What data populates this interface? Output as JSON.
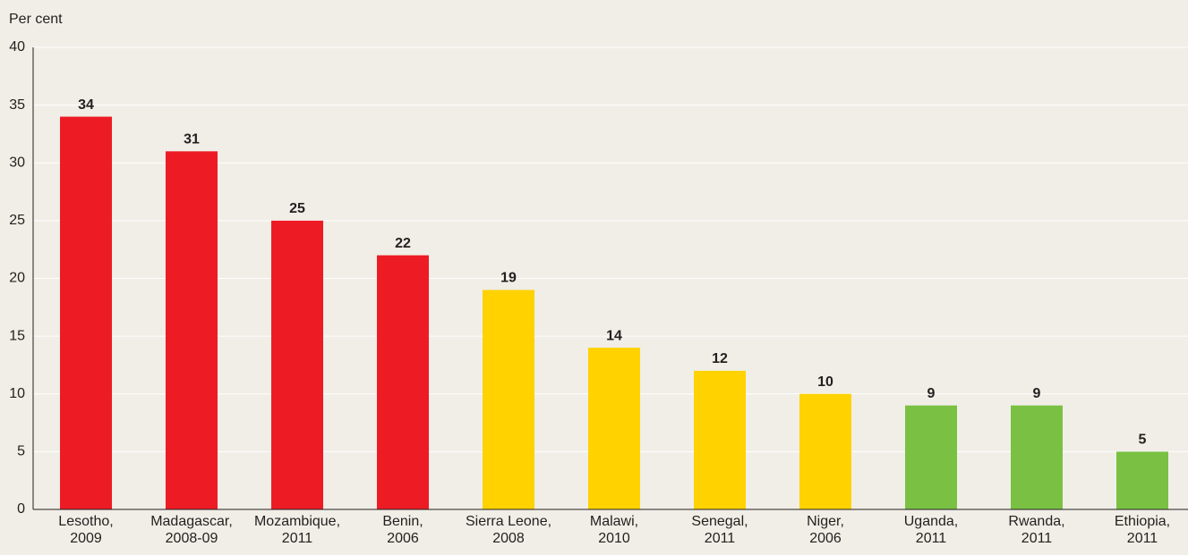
{
  "chart_data": {
    "type": "bar",
    "y_label": "Per cent",
    "categories": [
      "Lesotho,\n2009",
      "Madagascar,\n2008-09",
      "Mozambique,\n2011",
      "Benin,\n2006",
      "Sierra Leone,\n2008",
      "Malawi,\n2010",
      "Senegal,\n2011",
      "Niger,\n2006",
      "Uganda,\n2011",
      "Rwanda,\n2011",
      "Ethiopia,\n2011"
    ],
    "values": [
      34,
      31,
      25,
      22,
      19,
      14,
      12,
      10,
      9,
      9,
      5
    ],
    "colors": [
      "#ed1c24",
      "#ed1c24",
      "#ed1c24",
      "#ed1c24",
      "#ffd200",
      "#ffd200",
      "#ffd200",
      "#ffd200",
      "#7ac143",
      "#7ac143",
      "#7ac143"
    ],
    "ylim": [
      0,
      40
    ],
    "yticks": [
      0,
      5,
      10,
      15,
      20,
      25,
      30,
      35,
      40
    ],
    "grid": true
  }
}
